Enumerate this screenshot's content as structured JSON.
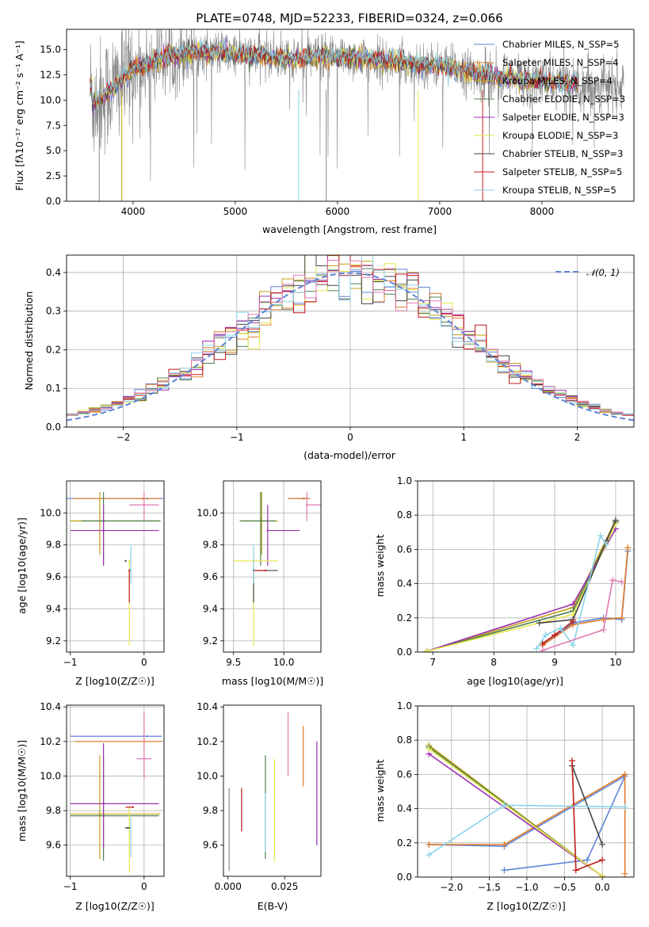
{
  "colors": [
    "#5f83d6",
    "#e07a28",
    "#c0a018",
    "#4f7f4f",
    "#9b30b0",
    "#e6e64a",
    "#444444",
    "#c01818",
    "#8ad3e8"
  ],
  "gray": "#888888",
  "pink": "#e07ab0",
  "chart_data": [
    {
      "id": "spectrum",
      "type": "line",
      "title": "PLATE=0748, MJD=52233, FIBERID=0324, z=0.066",
      "xlabel": "wavelength [Angstrom, rest frame]",
      "ylabel": "Flux [fλ10⁻¹⁷ erg cm⁻² s⁻¹ A⁻¹]",
      "xlim": [
        3350,
        8900
      ],
      "ylim": [
        0,
        17
      ],
      "xticks": [
        4000,
        5000,
        6000,
        7000,
        8000
      ],
      "yticks": [
        0.0,
        2.5,
        5.0,
        7.5,
        10.0,
        12.5,
        15.0
      ],
      "grid": false,
      "legend_position": "top-right",
      "data_trend": [
        [
          3600,
          9.5
        ],
        [
          3800,
          11.2
        ],
        [
          4000,
          13.0
        ],
        [
          4300,
          14.2
        ],
        [
          4600,
          14.8
        ],
        [
          5000,
          14.6
        ],
        [
          5500,
          14.1
        ],
        [
          6000,
          14.3
        ],
        [
          6500,
          13.8
        ],
        [
          7000,
          13.4
        ],
        [
          7400,
          12.5
        ],
        [
          7800,
          12.0
        ],
        [
          8200,
          11.7
        ],
        [
          8600,
          11.4
        ],
        [
          8800,
          11.3
        ]
      ],
      "data_xrange": [
        3580,
        8800
      ],
      "model_xrange": [
        3580,
        8350
      ],
      "series": [
        {
          "name": "Chabrier MILES, N_SSP=5"
        },
        {
          "name": "Salpeter MILES, N_SSP=4"
        },
        {
          "name": "Kroupa MILES, N_SSP=4"
        },
        {
          "name": "Chabrier ELODIE, N_SSP=3"
        },
        {
          "name": "Salpeter ELODIE, N_SSP=3"
        },
        {
          "name": "Kroupa ELODIE, N_SSP=3"
        },
        {
          "name": "Chabrier STELIB, N_SSP=3"
        },
        {
          "name": "Salpeter STELIB, N_SSP=5"
        },
        {
          "name": "Kroupa STELIB, N_SSP=5"
        }
      ]
    },
    {
      "id": "residuals",
      "type": "line",
      "xlabel": "(data-model)/error",
      "ylabel": "Normed distribution",
      "xlim": [
        -2.5,
        2.5
      ],
      "ylim": [
        0,
        0.445
      ],
      "xticks": [
        -2,
        -1,
        0,
        1,
        2
      ],
      "yticks": [
        0.0,
        0.1,
        0.2,
        0.3,
        0.4
      ],
      "grid": true,
      "legend": "𝒩(0, 1)",
      "legend_position": "top-right",
      "bin_width": 0.1
    },
    {
      "id": "age-vs-Z",
      "type": "scatter",
      "xlabel": "Z [log10(Z/Z☉)]",
      "ylabel": "age  [log10(age/yr)]",
      "xlim": [
        -1.05,
        0.27
      ],
      "ylim": [
        9.13,
        10.2
      ],
      "xticks": [
        -1,
        0
      ],
      "yticks": [
        9.2,
        9.4,
        9.6,
        9.8,
        10.0
      ],
      "grid": true,
      "points": [
        {
          "x": 0.04,
          "y": 10.09,
          "xerr": [
            1.1,
            0.22
          ],
          "yerr": [
            0.0,
            0.0
          ]
        },
        {
          "x": -0.02,
          "y": 10.09,
          "xerr": [
            0.94,
            0.24
          ],
          "yerr": [
            0.0,
            0.0
          ]
        },
        {
          "x": -0.6,
          "y": 9.95,
          "xerr": [
            0.4,
            0.82
          ],
          "yerr": [
            0.21,
            0.18
          ]
        },
        {
          "x": -0.55,
          "y": 9.95,
          "xerr": [
            0.3,
            0.77
          ],
          "yerr": [
            0.28,
            0.18
          ]
        },
        {
          "x": -0.55,
          "y": 9.89,
          "xerr": [
            0.45,
            0.75
          ],
          "yerr": [
            0.22,
            0.16
          ]
        },
        {
          "x": -0.2,
          "y": 9.7,
          "xerr": [
            0.0,
            0.0
          ],
          "yerr": [
            0.53,
            0.0
          ]
        },
        {
          "x": -0.25,
          "y": 9.7,
          "xerr": [
            0.0,
            0.0
          ],
          "yerr": [
            0.0,
            0.0
          ]
        },
        {
          "x": -0.2,
          "y": 9.64,
          "xerr": [
            0.0,
            0.0
          ],
          "yerr": [
            0.2,
            0.0
          ]
        },
        {
          "x": -0.18,
          "y": 9.65,
          "xerr": [
            0.0,
            0.0
          ],
          "yerr": [
            0.09,
            0.15
          ]
        },
        {
          "x": 0.0,
          "y": 10.05,
          "xerr": [
            0.2,
            0.2
          ],
          "yerr": [
            0.1,
            0.08
          ]
        }
      ]
    },
    {
      "id": "age-vs-mass",
      "type": "scatter",
      "xlabel": "mass [log10(M/M☉)]",
      "ylabel": "",
      "xlim": [
        9.4,
        10.37
      ],
      "ylim": [
        9.13,
        10.2
      ],
      "xticks": [
        9.5,
        10.0
      ],
      "yticks": [
        9.2,
        9.4,
        9.6,
        9.8,
        10.0
      ],
      "grid": true,
      "points": [
        {
          "x": 10.2,
          "y": 10.09,
          "xerr": [
            0.16,
            0.06
          ],
          "yerr": [
            0.0,
            0.0
          ]
        },
        {
          "x": 10.2,
          "y": 10.09,
          "xerr": [
            0.16,
            0.06
          ],
          "yerr": [
            0.0,
            0.0
          ]
        },
        {
          "x": 9.78,
          "y": 9.95,
          "xerr": [
            0.22,
            0.16
          ],
          "yerr": [
            0.21,
            0.18
          ]
        },
        {
          "x": 9.77,
          "y": 9.95,
          "xerr": [
            0.2,
            0.15
          ],
          "yerr": [
            0.28,
            0.18
          ]
        },
        {
          "x": 9.84,
          "y": 9.89,
          "xerr": [
            0.0,
            0.32
          ],
          "yerr": [
            0.22,
            0.16
          ]
        },
        {
          "x": 9.7,
          "y": 9.7,
          "xerr": [
            0.2,
            0.24
          ],
          "yerr": [
            0.53,
            0.0
          ]
        },
        {
          "x": 9.7,
          "y": 9.64,
          "xerr": [
            0.0,
            0.24
          ],
          "yerr": [
            0.2,
            0.0
          ]
        },
        {
          "x": 9.82,
          "y": 9.64,
          "xerr": [
            0.12,
            0.0
          ],
          "yerr": [
            0.0,
            0.0
          ]
        },
        {
          "x": 9.7,
          "y": 9.65,
          "xerr": [
            0.0,
            0.0
          ],
          "yerr": [
            0.09,
            0.15
          ]
        },
        {
          "x": 10.23,
          "y": 10.05,
          "xerr": [
            0.0,
            0.16
          ],
          "yerr": [
            0.1,
            0.08
          ]
        }
      ]
    },
    {
      "id": "weight-vs-age",
      "type": "line",
      "xlabel": "age  [log10(age/yr)]",
      "ylabel": "mass weight",
      "xlim": [
        6.75,
        10.3
      ],
      "ylim": [
        0,
        1.0
      ],
      "xticks": [
        7,
        8,
        9,
        10
      ],
      "yticks": [
        0.0,
        0.2,
        0.4,
        0.6,
        0.8,
        1.0
      ],
      "grid": true,
      "series": [
        {
          "x": [
            8.8,
            9.3,
            9.8,
            10.1,
            10.2
          ],
          "y": [
            0.04,
            0.17,
            0.2,
            0.19,
            0.59
          ]
        },
        {
          "x": [
            8.8,
            9.3,
            9.8,
            10.1,
            10.2
          ],
          "y": [
            0.04,
            0.16,
            0.19,
            0.2,
            0.61
          ]
        },
        {
          "x": [
            6.9,
            9.3,
            10.0
          ],
          "y": [
            0.005,
            0.26,
            0.77
          ]
        },
        {
          "x": [
            6.9,
            9.3,
            10.0
          ],
          "y": [
            0.005,
            0.24,
            0.76
          ]
        },
        {
          "x": [
            6.9,
            9.3,
            10.0
          ],
          "y": [
            0.005,
            0.28,
            0.72
          ]
        },
        {
          "x": [
            6.9,
            9.3,
            10.0
          ],
          "y": [
            0.005,
            0.22,
            0.75
          ]
        },
        {
          "x": [
            8.75,
            9.3,
            9.85,
            10.0
          ],
          "y": [
            0.17,
            0.19,
            0.65,
            0.77
          ]
        },
        {
          "x": [
            8.8,
            9.0,
            9.3
          ],
          "y": [
            0.05,
            0.1,
            0.18
          ]
        },
        {
          "x": [
            8.7,
            8.85,
            9.1,
            9.3,
            9.75,
            9.85
          ],
          "y": [
            0.02,
            0.1,
            0.14,
            0.04,
            0.68,
            0.63
          ]
        },
        {
          "x": [
            8.8,
            9.8,
            9.95,
            10.1
          ],
          "y": [
            0.01,
            0.13,
            0.42,
            0.41
          ]
        }
      ]
    },
    {
      "id": "mass-vs-Z",
      "type": "scatter",
      "xlabel": "Z [log10(Z/Z☉)]",
      "ylabel": "mass [log10(M/M☉)]",
      "xlim": [
        -1.05,
        0.27
      ],
      "ylim": [
        9.42,
        10.41
      ],
      "xticks": [
        -1,
        0
      ],
      "yticks": [
        9.6,
        9.8,
        10.0,
        10.2,
        10.4
      ],
      "grid": true,
      "points": [
        {
          "x": 0.04,
          "y": 10.23,
          "xerr": [
            1.04,
            0.2
          ],
          "yerr": [
            0.0,
            0.0
          ]
        },
        {
          "x": 0.0,
          "y": 10.2,
          "xerr": [
            0.94,
            0.24
          ],
          "yerr": [
            0.0,
            0.0
          ]
        },
        {
          "x": -0.6,
          "y": 9.78,
          "xerr": [
            0.4,
            0.82
          ],
          "yerr": [
            0.26,
            0.34
          ]
        },
        {
          "x": -0.55,
          "y": 9.77,
          "xerr": [
            0.45,
            0.75
          ],
          "yerr": [
            0.26,
            0.35
          ]
        },
        {
          "x": -0.55,
          "y": 9.84,
          "xerr": [
            0.45,
            0.75
          ],
          "yerr": [
            0.26,
            0.35
          ]
        },
        {
          "x": -0.2,
          "y": 9.7,
          "xerr": [
            0.0,
            0.0
          ],
          "yerr": [
            0.26,
            0.12
          ]
        },
        {
          "x": -0.22,
          "y": 9.7,
          "xerr": [
            0.04,
            0.04
          ],
          "yerr": [
            0.0,
            0.0
          ]
        },
        {
          "x": -0.15,
          "y": 9.82,
          "xerr": [
            0.1,
            0.0
          ],
          "yerr": [
            0.0,
            0.0
          ]
        },
        {
          "x": -0.18,
          "y": 9.7,
          "xerr": [
            0.0,
            0.0
          ],
          "yerr": [
            0.17,
            0.06
          ]
        },
        {
          "x": 0.0,
          "y": 10.1,
          "xerr": [
            0.1,
            0.1
          ],
          "yerr": [
            0.12,
            0.27
          ]
        }
      ]
    },
    {
      "id": "mass-vs-EBV",
      "type": "scatter",
      "xlabel": "E(B-V)",
      "ylabel": "",
      "xlim": [
        -0.002,
        0.041
      ],
      "ylim": [
        9.42,
        10.41
      ],
      "xticks": [
        0.0,
        0.025
      ],
      "xtick_labels": [
        "0.000",
        "0.025"
      ],
      "yticks": [
        9.6,
        9.8,
        10.0,
        10.2,
        10.4
      ],
      "grid": false,
      "vbars": [
        {
          "x": 0.0005,
          "y0": 9.45,
          "y1": 9.93
        },
        {
          "x": 0.006,
          "y0": 9.68,
          "y1": 9.93
        },
        {
          "x": 0.0165,
          "y0": 9.52,
          "y1": 10.12
        },
        {
          "x": 0.0165,
          "y0": 9.56,
          "y1": 9.9
        },
        {
          "x": 0.0205,
          "y0": 9.5,
          "y1": 10.1
        },
        {
          "x": 0.0265,
          "y0": 10.0,
          "y1": 10.37
        },
        {
          "x": 0.0332,
          "y0": 9.94,
          "y1": 10.29
        },
        {
          "x": 0.0392,
          "y0": 9.6,
          "y1": 10.2
        }
      ]
    },
    {
      "id": "weight-vs-Z",
      "type": "line",
      "xlabel": "Z [log10(Z/Z☉)]",
      "ylabel": "mass weight",
      "xlim": [
        -2.45,
        0.42
      ],
      "ylim": [
        0,
        1.0
      ],
      "xticks": [
        -2.0,
        -1.5,
        -1.0,
        -0.5,
        0.0
      ],
      "yticks": [
        0.0,
        0.2,
        0.4,
        0.6,
        0.8,
        1.0
      ],
      "grid": true,
      "series": [
        {
          "x": [
            -2.3,
            -1.3,
            0.3,
            -0.2,
            -1.3
          ],
          "y": [
            0.19,
            0.18,
            0.59,
            0.1,
            0.04
          ]
        },
        {
          "x": [
            -2.3,
            -1.3,
            0.3,
            0.3
          ],
          "y": [
            0.19,
            0.19,
            0.6,
            0.02
          ]
        },
        {
          "x": [
            -2.3,
            0.0
          ],
          "y": [
            0.77,
            0.005
          ]
        },
        {
          "x": [
            -2.3,
            0.0
          ],
          "y": [
            0.76,
            0.005
          ]
        },
        {
          "x": [
            -2.3,
            0.0
          ],
          "y": [
            0.72,
            0.005
          ]
        },
        {
          "x": [
            -2.3,
            0.0
          ],
          "y": [
            0.75,
            0.005
          ]
        },
        {
          "x": [
            -0.4,
            0.0
          ],
          "y": [
            0.65,
            0.19
          ]
        },
        {
          "x": [
            -0.4,
            -0.35,
            0.0
          ],
          "y": [
            0.68,
            0.04,
            0.1
          ]
        },
        {
          "x": [
            -2.3,
            -1.3,
            0.3
          ],
          "y": [
            0.13,
            0.42,
            0.41
          ]
        }
      ]
    }
  ]
}
